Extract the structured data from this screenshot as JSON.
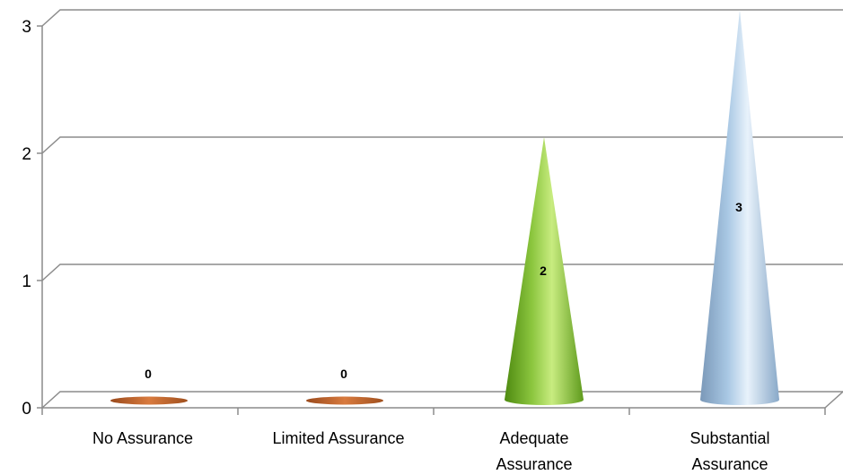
{
  "chart_data": {
    "type": "bar",
    "style": "3d-cone",
    "categories": [
      [
        "No Assurance"
      ],
      [
        "Limited Assurance"
      ],
      [
        "Adequate",
        "Assurance"
      ],
      [
        "Substantial",
        "Assurance"
      ]
    ],
    "values": [
      0,
      0,
      2,
      3
    ],
    "data_labels": [
      "0",
      "0",
      "2",
      "3"
    ],
    "colors": [
      "#c0602a",
      "#c0602a",
      "#8cc63f",
      "#a9c8e4"
    ],
    "yticks": [
      "0",
      "1",
      "2",
      "3"
    ],
    "ylim": [
      0,
      3
    ],
    "grid": true,
    "legend": "none"
  }
}
